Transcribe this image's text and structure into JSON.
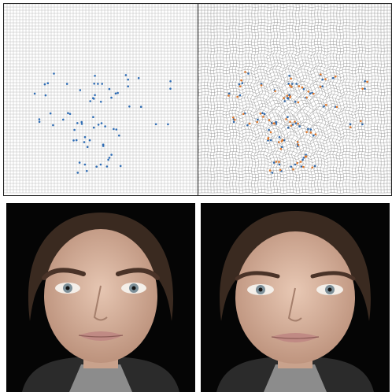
{
  "figure": {
    "panels": [
      {
        "id": "grid-left",
        "kind": "regular-grid-with-landmarks",
        "point_color": "#2f6db5",
        "grid_color": "#bcbcbc"
      },
      {
        "id": "grid-right",
        "kind": "warped-grid-with-displaced-landmarks",
        "point_colors": [
          "#2f6db5",
          "#e07a2e"
        ],
        "grid_color": "#9a9a9a"
      },
      {
        "id": "face-left",
        "kind": "portrait-photo-original"
      },
      {
        "id": "face-right",
        "kind": "portrait-photo-warped"
      }
    ],
    "palette": {
      "background": "#050505",
      "skin": "#d9b6a0",
      "hair": "#3a2a20",
      "lips": "#c08a84",
      "shirt": "#8c8c8c"
    }
  }
}
